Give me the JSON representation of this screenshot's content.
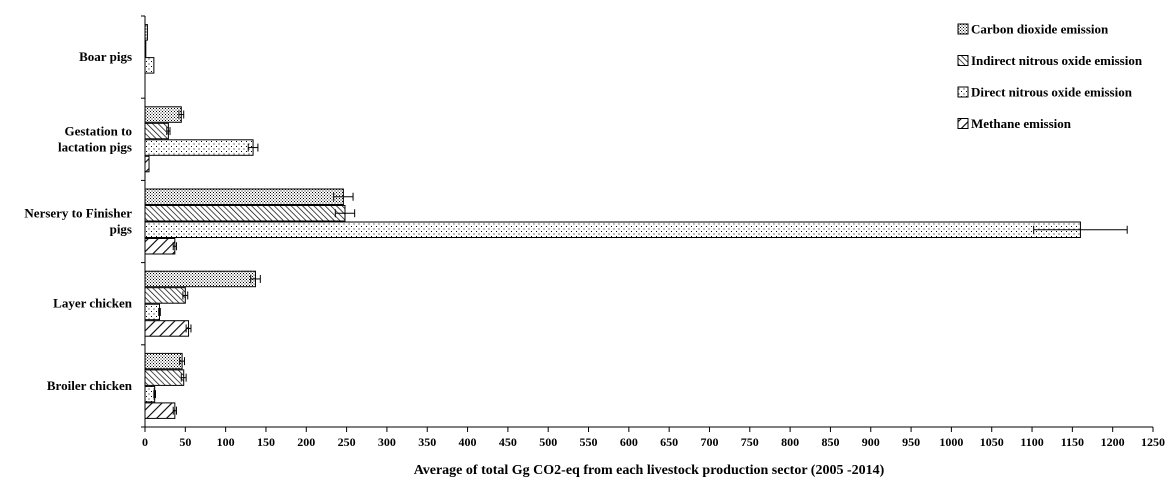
{
  "chart_data": {
    "type": "bar",
    "orientation": "horizontal",
    "categories": [
      "Boar pigs",
      "Gestation to lactation pigs",
      "Nersery to Finisher pigs",
      "Layer chicken",
      "Broiler chicken"
    ],
    "category_labels": [
      [
        "Boar pigs"
      ],
      [
        "Gestation to",
        "lactation pigs"
      ],
      [
        "Nersery to Finisher",
        "pigs"
      ],
      [
        "Layer chicken"
      ],
      [
        "Broiler chicken"
      ]
    ],
    "series": [
      {
        "name": "Carbon dioxide emission",
        "pattern": "dense-dots",
        "values": [
          3,
          45,
          246,
          137,
          46
        ],
        "errors": [
          0,
          3,
          12,
          6,
          3
        ]
      },
      {
        "name": "Indirect nitrous oxide emission",
        "pattern": "diagonal-fine",
        "values": [
          1,
          29,
          248,
          50,
          48
        ],
        "errors": [
          0,
          2,
          12,
          3,
          3
        ]
      },
      {
        "name": "Direct nitrous oxide emission",
        "pattern": "sparse-dots",
        "values": [
          11,
          134,
          1160,
          18,
          12
        ],
        "errors": [
          0,
          6,
          58,
          1,
          1
        ]
      },
      {
        "name": "Methane emission",
        "pattern": "diagonal-wide",
        "values": [
          0,
          5,
          37,
          54,
          37
        ],
        "errors": [
          0,
          0,
          2,
          3,
          2
        ]
      }
    ],
    "xlabel": "Average of total Gg CO2-eq from each livestock production sector (2005 -2014)",
    "ylabel": "",
    "xlim": [
      0,
      1250
    ],
    "x_ticks": [
      "0",
      "50",
      "100",
      "150",
      "200",
      "250",
      "300",
      "350",
      "400",
      "450",
      "500",
      "550",
      "600",
      "650",
      "700",
      "750",
      "800",
      "850",
      "900",
      "950",
      "1000",
      "1050",
      "1100",
      "1150",
      "1200",
      "1250"
    ],
    "grid": false,
    "legend_position": "top-right",
    "colors": {
      "bar_fill": "#ffffff",
      "stroke": "#000000",
      "pattern": "#000000"
    }
  }
}
